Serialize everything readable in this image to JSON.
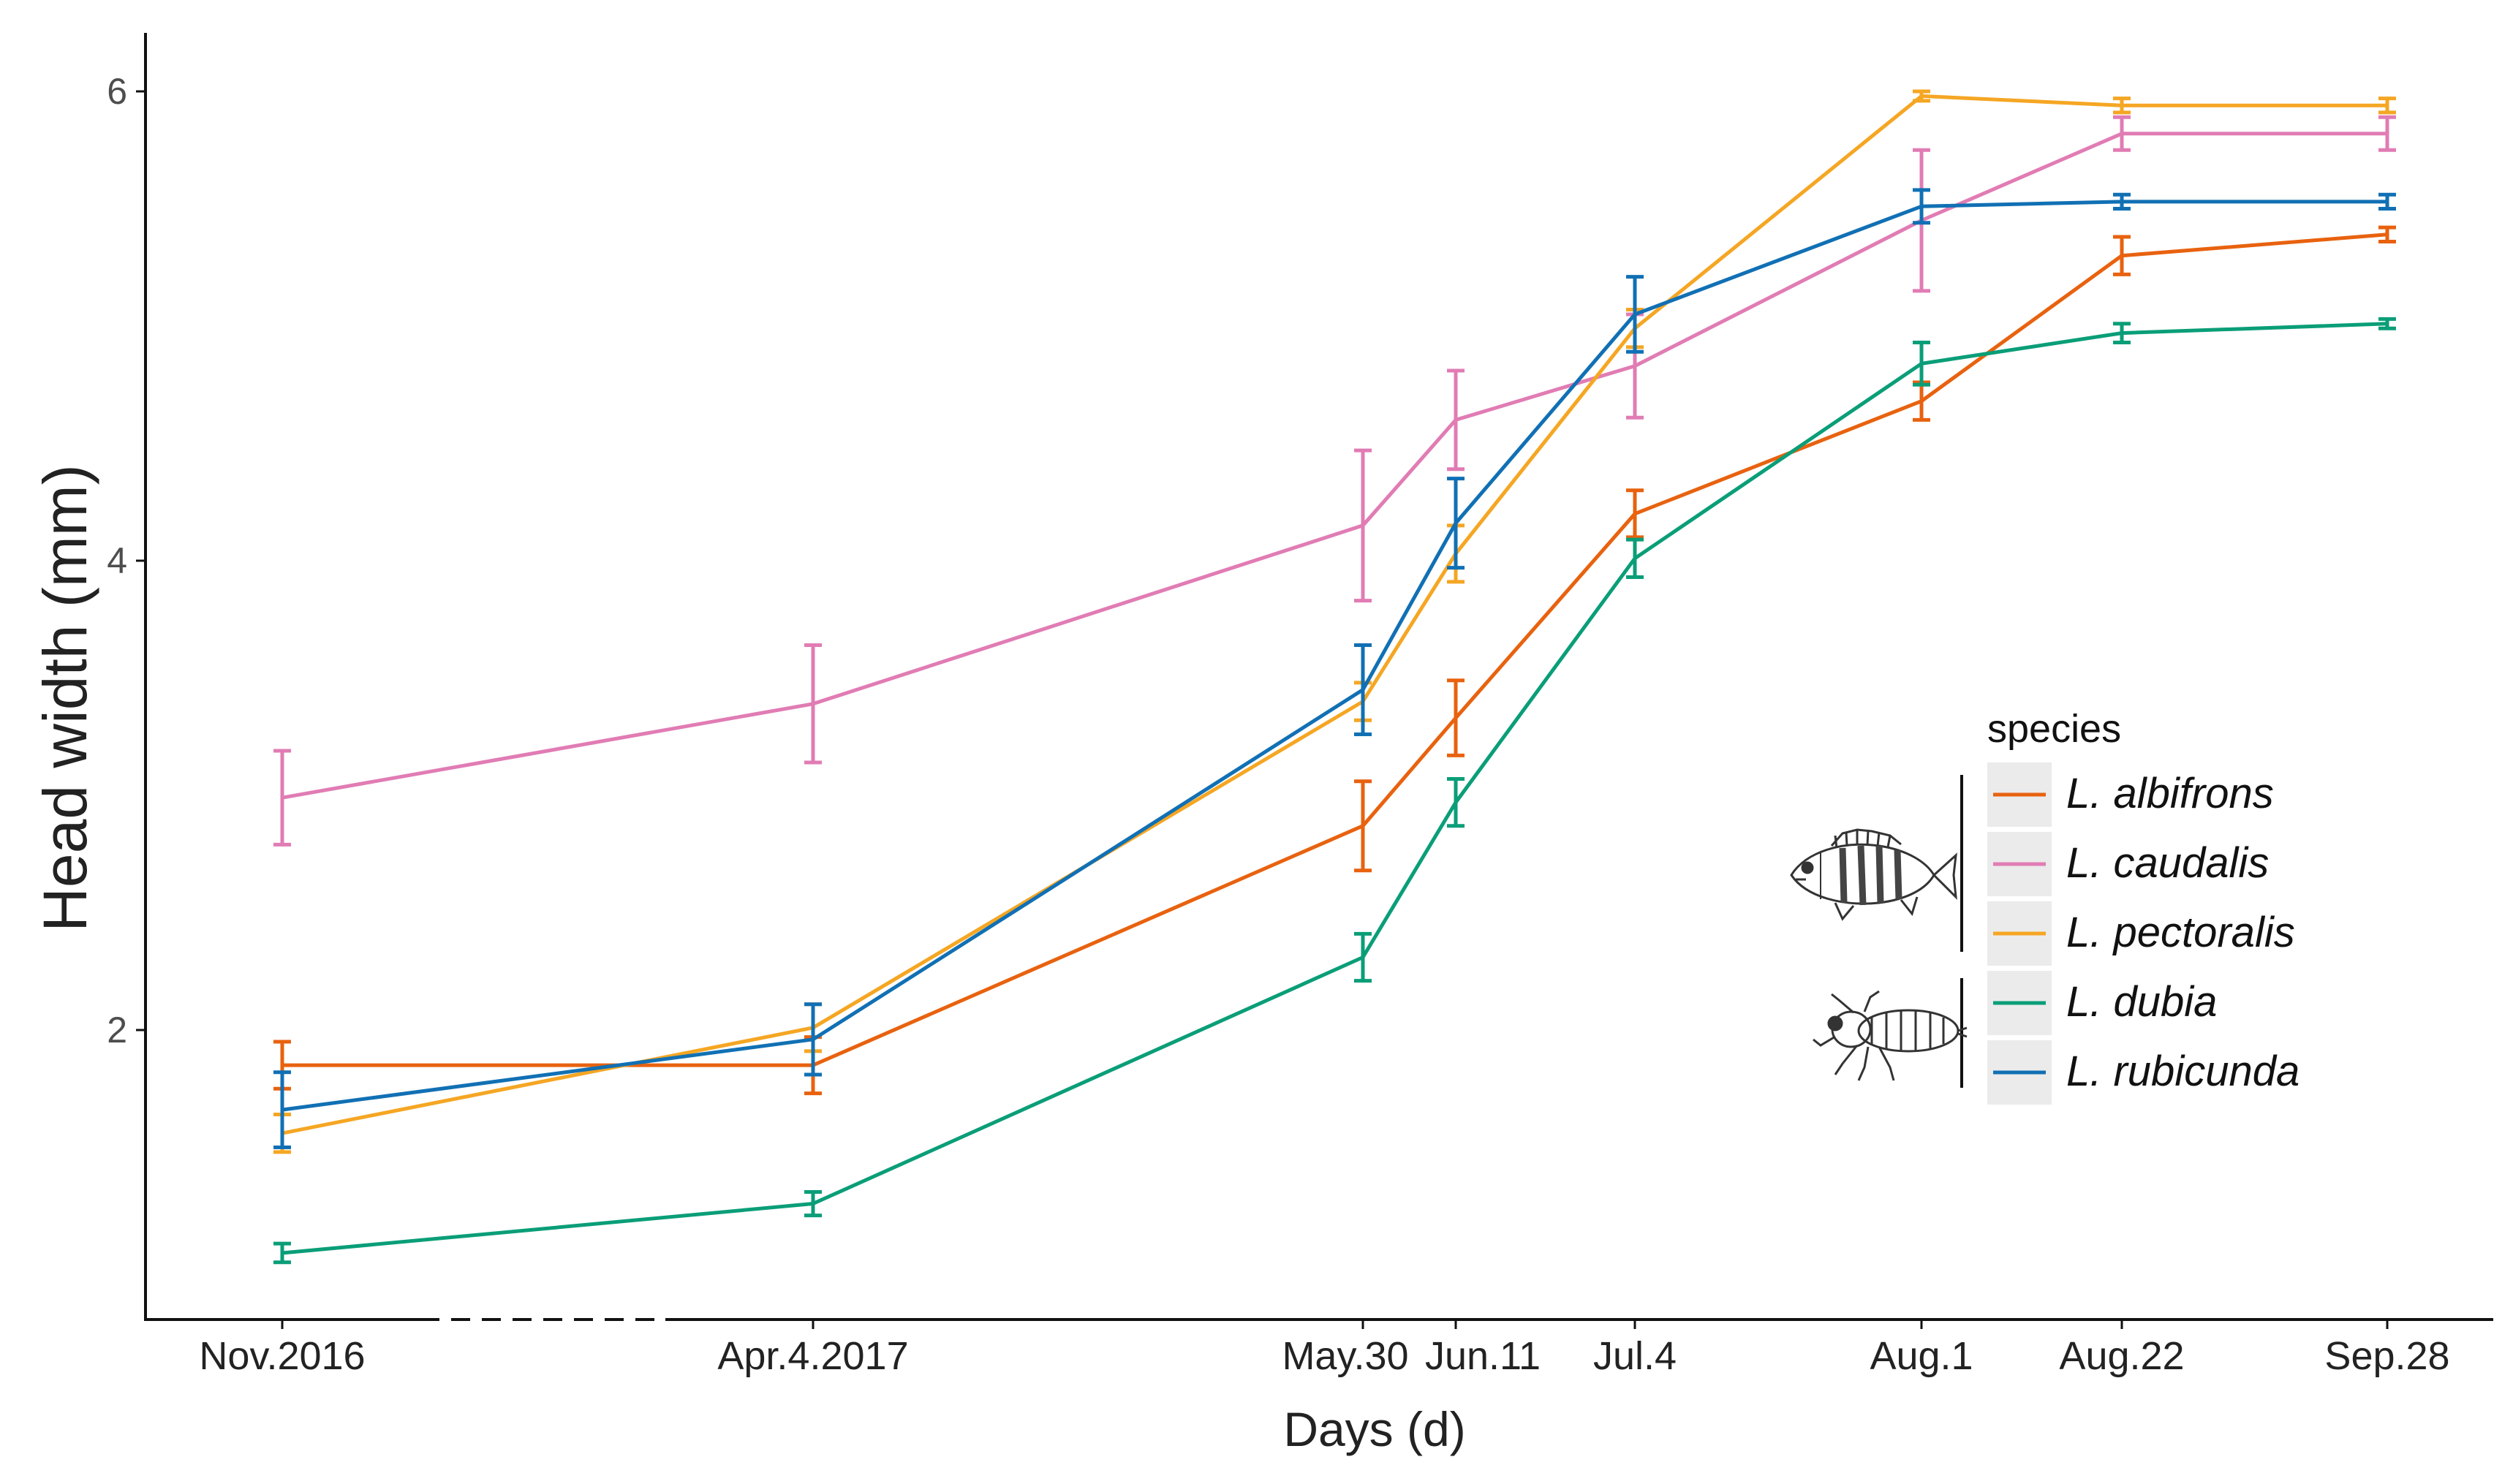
{
  "chart_data": {
    "type": "line",
    "ylabel": "Head width (mm)",
    "xlabel": "Days (d)",
    "categories": [
      "Nov.2016",
      "Apr.4.2017",
      "May.30",
      "Jun.11",
      "Jul.4",
      "Aug.1",
      "Aug.22",
      "Sep.28"
    ],
    "y_ticks": [
      "2",
      "4",
      "6"
    ],
    "ylim": [
      0.9,
      6.25
    ],
    "legend": {
      "title": "species",
      "placement": "right",
      "groups": [
        {
          "icon": "perch-fish-icon",
          "members": [
            "L. albifrons",
            "L. caudalis",
            "L. pectoralis"
          ]
        },
        {
          "icon": "dragonfly-larva-icon",
          "members": [
            "L. dubia",
            "L. rubicunda"
          ]
        }
      ]
    },
    "axis_break": "between Nov.2016 and Apr.4.2017",
    "error_bars": true,
    "series": [
      {
        "name": "L. albifrons",
        "color": "#e8620f",
        "values": [
          1.85,
          1.85,
          2.87,
          3.33,
          4.2,
          4.68,
          5.3,
          5.39
        ],
        "errors": [
          0.1,
          0.12,
          0.19,
          0.16,
          0.1,
          0.08,
          0.08,
          0.03
        ]
      },
      {
        "name": "L. caudalis",
        "color": "#e17cb4",
        "values": [
          2.99,
          3.39,
          4.15,
          4.6,
          4.83,
          5.45,
          5.82,
          5.82
        ],
        "errors": [
          0.2,
          0.25,
          0.32,
          0.21,
          0.22,
          0.3,
          0.07,
          0.07
        ]
      },
      {
        "name": "L. pectoralis",
        "color": "#f5a623",
        "values": [
          1.56,
          2.01,
          3.4,
          4.03,
          4.99,
          5.98,
          5.94,
          5.94
        ],
        "errors": [
          0.08,
          0.1,
          0.08,
          0.12,
          0.08,
          0.02,
          0.03,
          0.03
        ]
      },
      {
        "name": "L. dubia",
        "color": "#0a9e78",
        "values": [
          1.05,
          1.26,
          2.31,
          2.97,
          4.01,
          4.84,
          4.97,
          5.01
        ],
        "errors": [
          0.04,
          0.05,
          0.1,
          0.1,
          0.08,
          0.09,
          0.04,
          0.02
        ]
      },
      {
        "name": "L. rubicunda",
        "color": "#1170b4",
        "values": [
          1.66,
          1.96,
          3.45,
          4.16,
          5.05,
          5.51,
          5.53,
          5.53
        ],
        "errors": [
          0.16,
          0.15,
          0.19,
          0.19,
          0.16,
          0.07,
          0.03,
          0.03
        ]
      }
    ]
  }
}
